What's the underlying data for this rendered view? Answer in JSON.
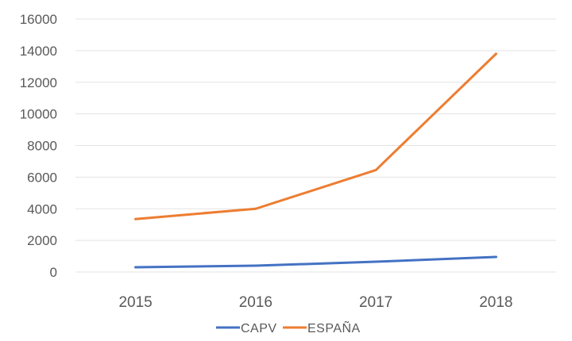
{
  "chart_data": {
    "type": "line",
    "categories": [
      "2015",
      "2016",
      "2017",
      "2018"
    ],
    "series": [
      {
        "name": "CAPV",
        "values": [
          300,
          400,
          650,
          950
        ],
        "color": "#4472c4"
      },
      {
        "name": "ESPAÑA",
        "values": [
          3350,
          4000,
          6450,
          13800
        ],
        "color": "#ed7d31"
      }
    ],
    "ylim": [
      0,
      16000
    ],
    "yticks": [
      "0",
      "2000",
      "4000",
      "6000",
      "8000",
      "10000",
      "12000",
      "14000",
      "16000"
    ],
    "grid": true,
    "legend": "bottom"
  }
}
